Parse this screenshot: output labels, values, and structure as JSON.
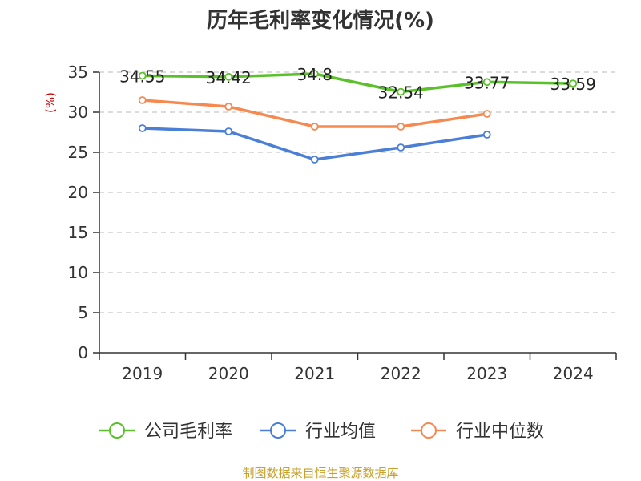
{
  "chart_data": {
    "type": "line",
    "title": "历年毛利率变化情况(%)",
    "ylabel": "(%)",
    "xlabel": "",
    "categories": [
      "2019",
      "2020",
      "2021",
      "2022",
      "2023",
      "2024"
    ],
    "ylim": [
      0,
      35
    ],
    "yticks": [
      0,
      5,
      10,
      15,
      20,
      25,
      30,
      35
    ],
    "grid": "horizontal dashed",
    "legend_position": "bottom",
    "series": [
      {
        "name": "公司毛利率",
        "color": "#5ac12b",
        "values": [
          34.55,
          34.42,
          34.8,
          32.54,
          33.77,
          33.59
        ],
        "labels": [
          "34.55",
          "34.42",
          "34.8",
          "32.54",
          "33.77",
          "33.59"
        ]
      },
      {
        "name": "行业均值",
        "color": "#4b7fd6",
        "values": [
          28.0,
          27.6,
          24.1,
          25.6,
          27.2,
          null
        ]
      },
      {
        "name": "行业中位数",
        "color": "#f5894f",
        "values": [
          31.5,
          30.7,
          28.2,
          28.2,
          29.8,
          null
        ]
      }
    ]
  },
  "source": "制图数据来自恒生聚源数据库"
}
